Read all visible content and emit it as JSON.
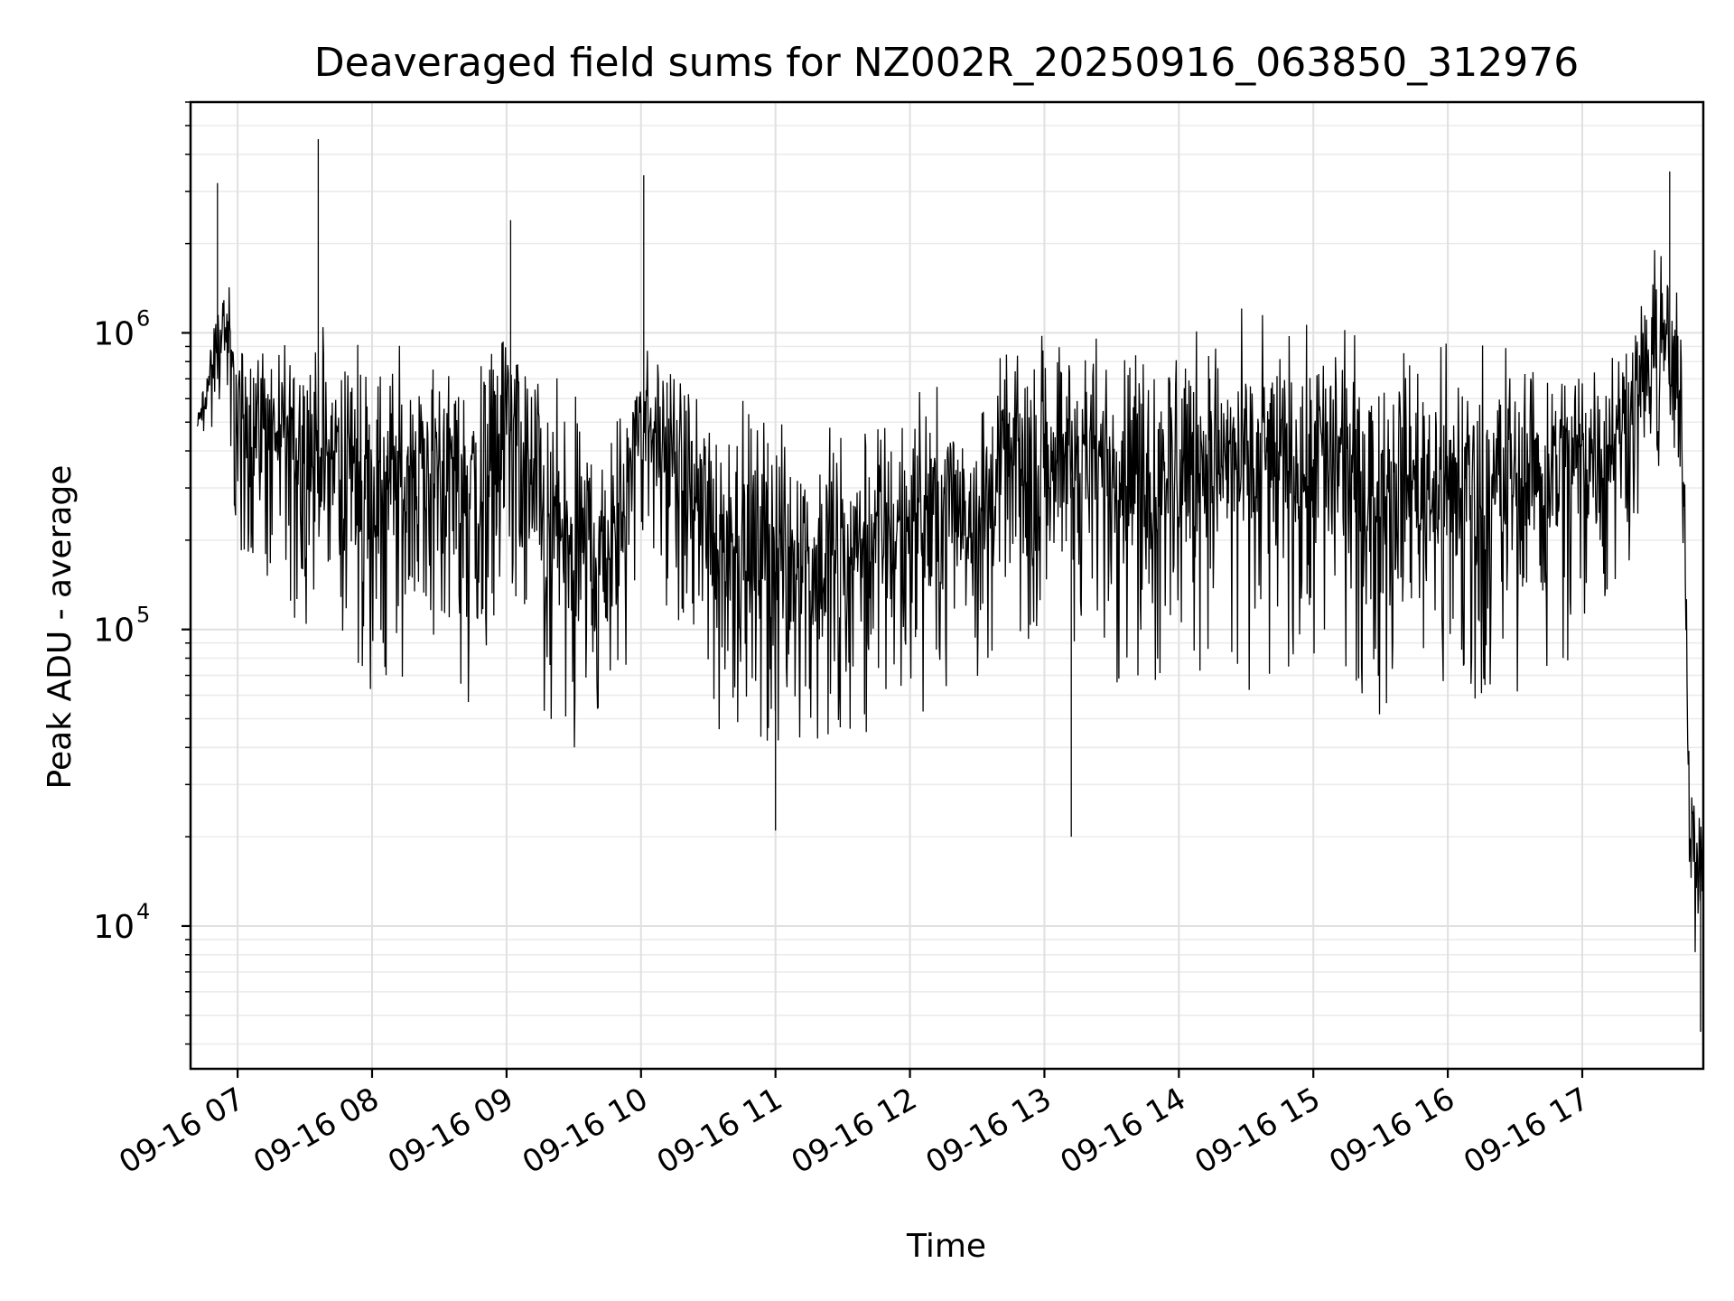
{
  "chart_data": {
    "type": "line",
    "title": "Deaveraged field sums for NZ002R_20250916_063850_312976",
    "xlabel": "Time",
    "ylabel": "Peak ADU - average",
    "yscale": "log",
    "xlim": [
      "09-16 06:39",
      "09-16 17:54"
    ],
    "ylim": [
      3300,
      6000000
    ],
    "grid": "major and minor, light gray",
    "line_color": "#000000",
    "x_ticks": [
      "09-16 07",
      "09-16 08",
      "09-16 09",
      "09-16 10",
      "09-16 11",
      "09-16 12",
      "09-16 13",
      "09-16 14",
      "09-16 15",
      "09-16 16",
      "09-16 17"
    ],
    "y_ticks": [
      {
        "value": 10000,
        "base": "10",
        "exp": "4"
      },
      {
        "value": 100000,
        "base": "10",
        "exp": "5"
      },
      {
        "value": 1000000,
        "base": "10",
        "exp": "6"
      }
    ],
    "series": [
      {
        "x_unit": "hours since 09-16 00:00",
        "envelope_x": [
          6.7,
          6.9,
          7.0,
          7.5,
          7.8,
          8.0,
          8.5,
          8.8,
          9.0,
          9.3,
          9.5,
          9.8,
          10.0,
          10.5,
          11.0,
          11.5,
          12.0,
          12.5,
          13.0,
          13.5,
          14.0,
          14.5,
          15.0,
          15.5,
          16.0,
          16.5,
          17.0,
          17.3,
          17.6,
          17.75,
          17.8,
          17.9
        ],
        "envelope_low": [
          400000,
          500000,
          180000,
          100000,
          80000,
          60000,
          80000,
          45000,
          180000,
          35000,
          32000,
          35000,
          200000,
          45000,
          35000,
          30000,
          45000,
          60000,
          100000,
          60000,
          70000,
          60000,
          80000,
          50000,
          50000,
          60000,
          80000,
          150000,
          300000,
          100000,
          10000,
          5000
        ],
        "envelope_high": [
          550000,
          2000000,
          1200000,
          1300000,
          1300000,
          1100000,
          1200000,
          1100000,
          1500000,
          900000,
          800000,
          700000,
          1200000,
          800000,
          700000,
          700000,
          800000,
          900000,
          1300000,
          1300000,
          1400000,
          1400000,
          1300000,
          1300000,
          1200000,
          1300000,
          1200000,
          1300000,
          2500000,
          1500000,
          50000,
          30000
        ],
        "spikes": [
          {
            "x": 6.85,
            "y": 3200000
          },
          {
            "x": 7.6,
            "y": 4500000
          },
          {
            "x": 9.03,
            "y": 2400000
          },
          {
            "x": 10.02,
            "y": 3400000
          },
          {
            "x": 11.0,
            "y": 21000
          },
          {
            "x": 13.2,
            "y": 20000
          },
          {
            "x": 17.65,
            "y": 3500000
          },
          {
            "x": 17.88,
            "y": 4400
          }
        ]
      }
    ]
  }
}
